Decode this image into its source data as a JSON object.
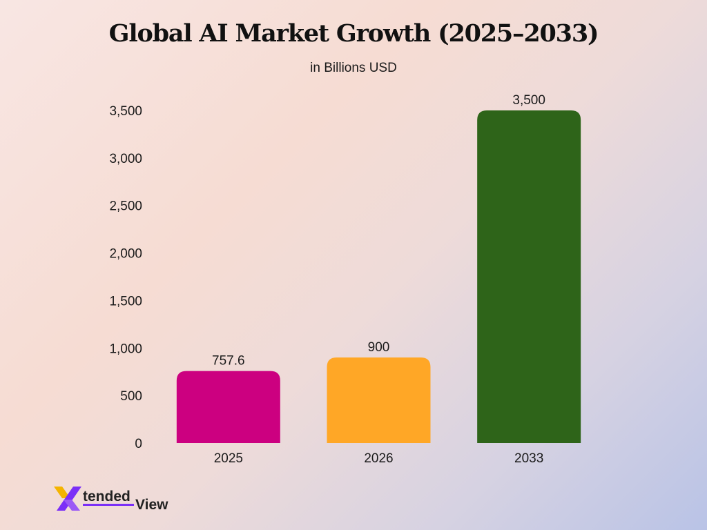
{
  "chart_data": {
    "type": "bar",
    "title": "Global AI Market Growth (2025–2033)",
    "subtitle": "in Billions USD",
    "categories": [
      "2025",
      "2026",
      "2033"
    ],
    "values": [
      757.6,
      900,
      3500
    ],
    "value_labels": [
      "757.6",
      "900",
      "3,500"
    ],
    "bar_colors": [
      "#cc0080",
      "#ffa726",
      "#2e6419"
    ],
    "ylim": [
      0,
      3500
    ],
    "yticks": [
      0,
      500,
      1000,
      1500,
      2000,
      2500,
      3000,
      3500
    ],
    "ytick_labels": [
      "0",
      "500",
      "1,000",
      "1,500",
      "2,000",
      "2,500",
      "3,000",
      "3,500"
    ],
    "grid": false,
    "legend": "none"
  },
  "logo": {
    "text": "XtendedView",
    "colors": {
      "x_left": "#f4b400",
      "x_right": "#7b2ff7",
      "text": "#222222"
    }
  }
}
